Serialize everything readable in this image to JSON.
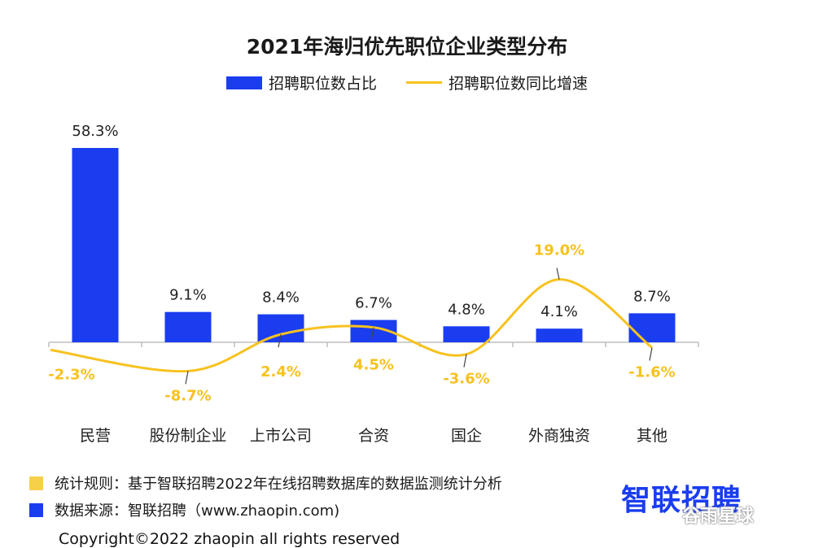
{
  "chart_data": {
    "type": "bar",
    "title": "2021年海归优先职位企业类型分布",
    "categories": [
      "民营",
      "股份制企业",
      "上市公司",
      "合资",
      "国企",
      "外商独资",
      "其他"
    ],
    "series": [
      {
        "name": "招聘职位数占比",
        "type": "bar",
        "values": [
          58.3,
          9.1,
          8.4,
          6.7,
          4.8,
          4.1,
          8.7
        ],
        "labels": [
          "58.3%",
          "9.1%",
          "8.4%",
          "6.7%",
          "4.8%",
          "4.1%",
          "8.7%"
        ]
      },
      {
        "name": "招聘职位数同比增速",
        "type": "line",
        "values": [
          -2.3,
          -8.7,
          2.4,
          4.5,
          -3.6,
          19.0,
          -1.6
        ],
        "labels": [
          "-2.3%",
          "-8.7%",
          "2.4%",
          "4.5%",
          "-3.6%",
          "19.0%",
          "-1.6%"
        ]
      }
    ],
    "grid": false,
    "legend": "top"
  },
  "colors": {
    "bar": "#1a3df0",
    "line": "#f7c21f",
    "footer_rule": "#f7d04a"
  },
  "footer": {
    "rule_text": "统计规则：基于智联招聘2022年在线招聘数据库的数据监测统计分析",
    "source_text": "数据来源：智联招聘（www.zhaopin.com)"
  },
  "logo_text": "智联招聘",
  "watermark_text": "谷雨星球",
  "copyright": "Copyright©2022 zhaopin all rights reserved"
}
